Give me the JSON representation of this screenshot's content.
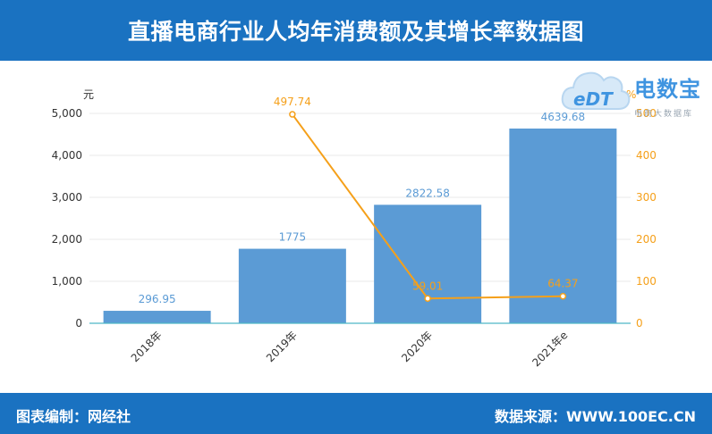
{
  "header": {
    "title": "直播电商行业人均年消费额及其增长率数据图"
  },
  "footer": {
    "left_text": "图表编制：网经社",
    "right_text": "数据来源：WWW.100EC.CN"
  },
  "logo": {
    "brand": "电数宝",
    "sub": "电商大数据库"
  },
  "colors": {
    "header_bg": "#1a72c1",
    "bar": "#5b9bd5",
    "line": "#f5a01a",
    "axis": "#333333"
  },
  "chart_data": {
    "type": "bar",
    "categories": [
      "2018年",
      "2019年",
      "2020年",
      "2021年e"
    ],
    "series": [
      {
        "type": "bar",
        "values": [
          296.95,
          1775,
          2822.58,
          4639.68
        ],
        "labels": [
          "296.95",
          "1775",
          "2822.58",
          "4639.68"
        ],
        "axis": "left"
      },
      {
        "type": "line",
        "values": [
          null,
          497.74,
          59.01,
          64.37
        ],
        "labels": [
          "",
          "497.74",
          "59.01",
          "64.37"
        ],
        "axis": "right"
      }
    ],
    "left_axis": {
      "unit": "元",
      "ylim": [
        0,
        5000
      ],
      "ticks": [
        0,
        1000,
        2000,
        3000,
        4000,
        5000
      ],
      "tick_labels": [
        "0",
        "1,000",
        "2,000",
        "3,000",
        "4,000",
        "5,000"
      ]
    },
    "right_axis": {
      "unit": "%",
      "ylim": [
        0,
        500
      ],
      "ticks": [
        0,
        100,
        200,
        300,
        400,
        500
      ],
      "tick_labels": [
        "0",
        "100",
        "200",
        "300",
        "400",
        "500"
      ]
    },
    "grid": true,
    "legend": "none"
  }
}
